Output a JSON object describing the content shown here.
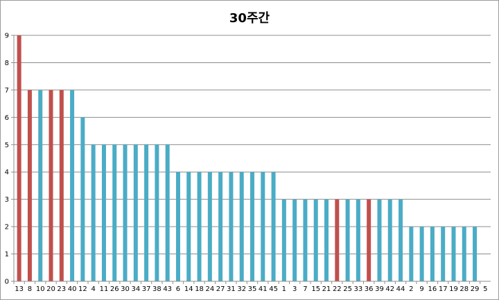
{
  "chart_data": {
    "type": "bar",
    "title": "30주간",
    "xlabel": "",
    "ylabel": "",
    "ylim": [
      0,
      9
    ],
    "yticks": [
      0,
      1,
      2,
      3,
      4,
      5,
      6,
      7,
      8,
      9
    ],
    "grid": true,
    "legend": "none",
    "colors": {
      "blue": "#4bacc6",
      "red": "#c0504d",
      "grid": "#8c8c8c"
    },
    "categories": [
      "13",
      "8",
      "10",
      "20",
      "23",
      "40",
      "12",
      "4",
      "11",
      "26",
      "30",
      "34",
      "37",
      "38",
      "43",
      "6",
      "14",
      "18",
      "24",
      "27",
      "31",
      "32",
      "35",
      "41",
      "45",
      "1",
      "3",
      "7",
      "15",
      "21",
      "22",
      "25",
      "33",
      "36",
      "39",
      "42",
      "44",
      "2",
      "9",
      "16",
      "17",
      "19",
      "28",
      "29",
      "5"
    ],
    "values": [
      9,
      7,
      7,
      7,
      7,
      7,
      6,
      5,
      5,
      5,
      5,
      5,
      5,
      5,
      5,
      4,
      4,
      4,
      4,
      4,
      4,
      4,
      4,
      4,
      4,
      3,
      3,
      3,
      3,
      3,
      3,
      3,
      3,
      3,
      3,
      3,
      3,
      2,
      2,
      2,
      2,
      2,
      2,
      2,
      0
    ],
    "bar_colors": [
      "red",
      "red",
      "blue",
      "red",
      "red",
      "blue",
      "blue",
      "blue",
      "blue",
      "blue",
      "blue",
      "blue",
      "blue",
      "blue",
      "blue",
      "blue",
      "blue",
      "blue",
      "blue",
      "blue",
      "blue",
      "blue",
      "blue",
      "blue",
      "blue",
      "blue",
      "blue",
      "blue",
      "blue",
      "blue",
      "red",
      "blue",
      "blue",
      "red",
      "blue",
      "blue",
      "blue",
      "blue",
      "blue",
      "blue",
      "blue",
      "blue",
      "blue",
      "blue",
      "blue"
    ]
  }
}
